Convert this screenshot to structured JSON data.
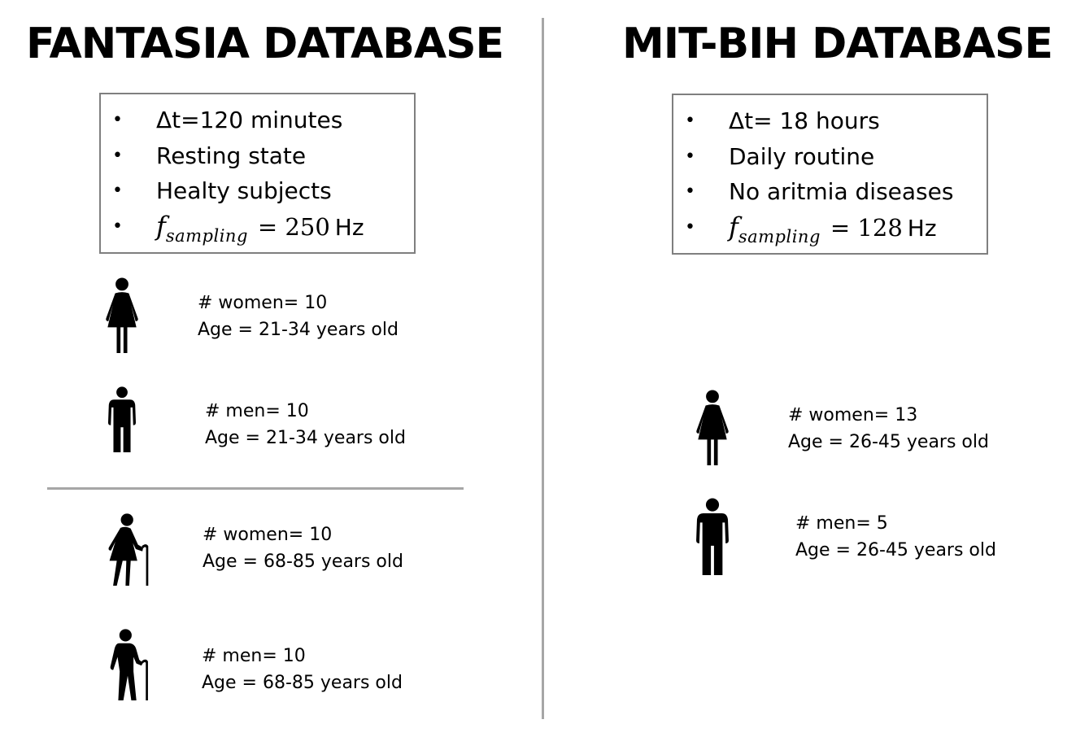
{
  "left": {
    "title": "FANTASIA DATABASE",
    "info": [
      {
        "text": "Δt=120 minutes"
      },
      {
        "text": "Resting state"
      },
      {
        "text": "Healty subjects"
      },
      {
        "f": "f",
        "sub": "sampling",
        "eq": "= 250",
        "unit": "Hz"
      }
    ],
    "groups": [
      {
        "icon": "woman-icon",
        "count": "# women= 10",
        "age": "Age = 21-34 years old"
      },
      {
        "icon": "man-icon",
        "count": "# men= 10",
        "age": "Age = 21-34 years old"
      },
      {
        "icon": "elderly-woman-icon",
        "count": "# women= 10",
        "age": "Age = 68-85 years old"
      },
      {
        "icon": "elderly-man-icon",
        "count": "# men= 10",
        "age": "Age = 68-85 years old"
      }
    ]
  },
  "right": {
    "title": "MIT-BIH DATABASE",
    "info": [
      {
        "text": "Δt= 18 hours"
      },
      {
        "text": "Daily routine"
      },
      {
        "text": "No aritmia diseases"
      },
      {
        "f": "f",
        "sub": "sampling",
        "eq": "= 128",
        "unit": "Hz"
      }
    ],
    "groups": [
      {
        "icon": "woman-icon",
        "count": "# women= 13",
        "age": "Age = 26-45 years old"
      },
      {
        "icon": "man-icon",
        "count": "# men= 5",
        "age": "Age = 26-45 years old"
      }
    ]
  },
  "bullet_char": "•",
  "colors": {
    "divider": "#a6a6a6",
    "box_border": "#7f7f7f",
    "icon": "#000000"
  }
}
